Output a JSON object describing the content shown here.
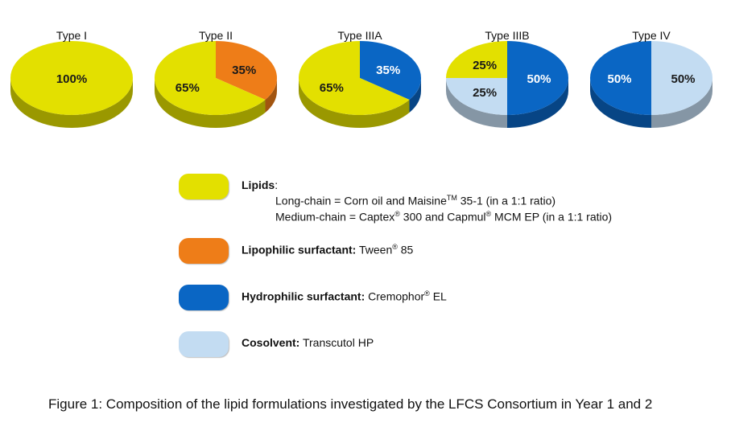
{
  "chart_data": {
    "type": "pie",
    "colors": {
      "lipids": "#e3e000",
      "lipophilic": "#ee7d18",
      "hydrophilic": "#0a66c4",
      "cosolvent": "#c3dcf2"
    },
    "charts": [
      {
        "title": "Type I",
        "slices": [
          {
            "component": "lipids",
            "value": 100,
            "label": "100%"
          }
        ]
      },
      {
        "title": "Type II",
        "slices": [
          {
            "component": "lipophilic",
            "value": 35,
            "label": "35%"
          },
          {
            "component": "lipids",
            "value": 65,
            "label": "65%"
          }
        ]
      },
      {
        "title": "Type IIIA",
        "slices": [
          {
            "component": "hydrophilic",
            "value": 35,
            "label": "35%"
          },
          {
            "component": "lipids",
            "value": 65,
            "label": "65%"
          }
        ]
      },
      {
        "title": "Type IIIB",
        "slices": [
          {
            "component": "hydrophilic",
            "value": 50,
            "label": "50%"
          },
          {
            "component": "cosolvent",
            "value": 25,
            "label": "25%"
          },
          {
            "component": "lipids",
            "value": 25,
            "label": "25%"
          }
        ]
      },
      {
        "title": "Type IV",
        "slices": [
          {
            "component": "cosolvent",
            "value": 50,
            "label": "50%"
          },
          {
            "component": "hydrophilic",
            "value": 50,
            "label": "50%"
          }
        ]
      }
    ]
  },
  "legend": {
    "lipids": {
      "name": "Lipids",
      "colon": ":",
      "line1_pre": "Long-chain = Corn oil and Maisine",
      "line1_sup": "TM",
      "line1_post": " 35-1 (in a 1:1 ratio)",
      "line2_a": "Medium-chain = Captex",
      "line2_sup1": "®",
      "line2_b": " 300 and Capmul",
      "line2_sup2": "®",
      "line2_c": " MCM EP (in a 1:1 ratio)"
    },
    "lipophilic": {
      "name": "Lipophilic surfactant:",
      "value": " Tween",
      "sup": "®",
      "post": " 85"
    },
    "hydrophilic": {
      "name": "Hydrophilic surfactant:",
      "value": " Cremophor",
      "sup": "®",
      "post": " EL"
    },
    "cosolvent": {
      "name": "Cosolvent:",
      "value": " Transcutol HP"
    }
  },
  "caption": "Figure 1: Composition of the lipid formulations investigated by the LFCS Consortium in Year 1 and 2"
}
